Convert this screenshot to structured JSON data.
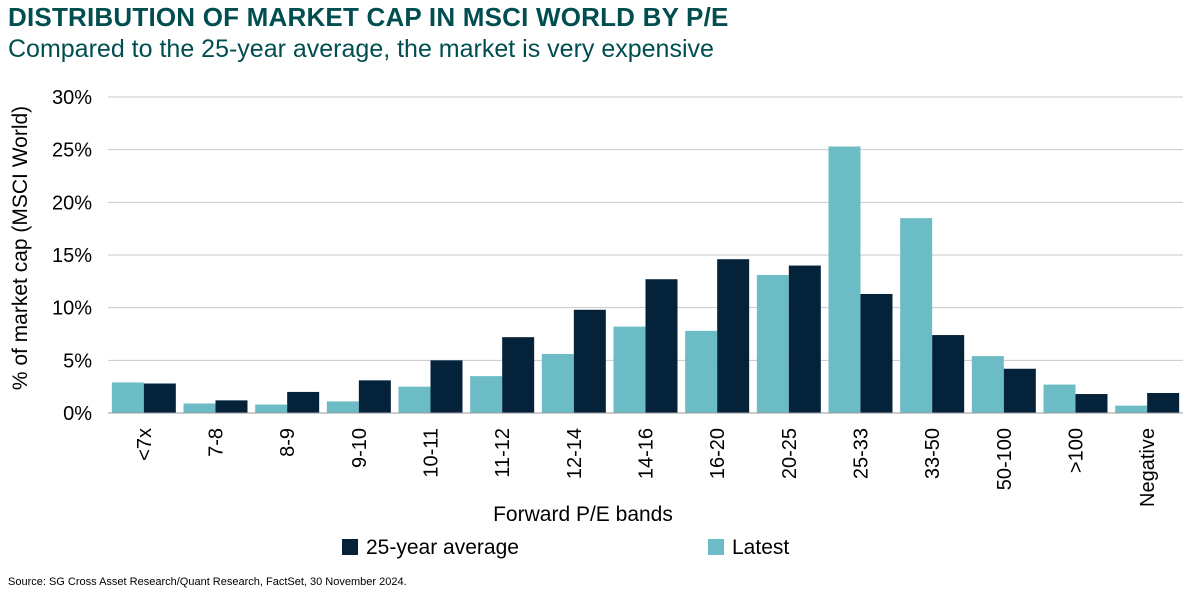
{
  "title": "DISTRIBUTION OF MARKET CAP IN MSCI WORLD BY P/E",
  "subtitle": "Compared to the 25-year average, the market is very expensive",
  "source": "Source: SG Cross Asset Research/Quant Research, FactSet, 30 November 2024.",
  "colors": {
    "latest": "#6CBCC6",
    "average": "#04233B",
    "title": "#004E50",
    "grid": "#C8C8C8"
  },
  "chart_data": {
    "type": "bar",
    "title": "DISTRIBUTION OF MARKET CAP IN MSCI WORLD BY P/E",
    "xlabel": "Forward P/E bands",
    "ylabel": "% of market cap (MSCI World)",
    "ylim": [
      0,
      30
    ],
    "yticks": [
      0,
      5,
      10,
      15,
      20,
      25,
      30
    ],
    "ytick_labels": [
      "0%",
      "5%",
      "10%",
      "15%",
      "20%",
      "25%",
      "30%"
    ],
    "grid": true,
    "legend_position": "bottom",
    "categories": [
      "<7x",
      "7-8",
      "8-9",
      "9-10",
      "10-11",
      "11-12",
      "12-14",
      "14-16",
      "16-20",
      "20-25",
      "25-33",
      "33-50",
      "50-100",
      ">100",
      "Negative"
    ],
    "series": [
      {
        "name": "Latest",
        "color": "#6CBCC6",
        "values": [
          2.9,
          0.9,
          0.8,
          1.1,
          2.5,
          3.5,
          5.6,
          8.2,
          7.8,
          13.1,
          25.3,
          18.5,
          5.4,
          2.7,
          0.7
        ]
      },
      {
        "name": "25-year average",
        "color": "#04233B",
        "values": [
          2.8,
          1.2,
          2.0,
          3.1,
          5.0,
          7.2,
          9.8,
          12.7,
          14.6,
          14.0,
          11.3,
          7.4,
          4.2,
          1.8,
          1.9
        ]
      }
    ],
    "legend": [
      "25-year average",
      "Latest"
    ]
  }
}
